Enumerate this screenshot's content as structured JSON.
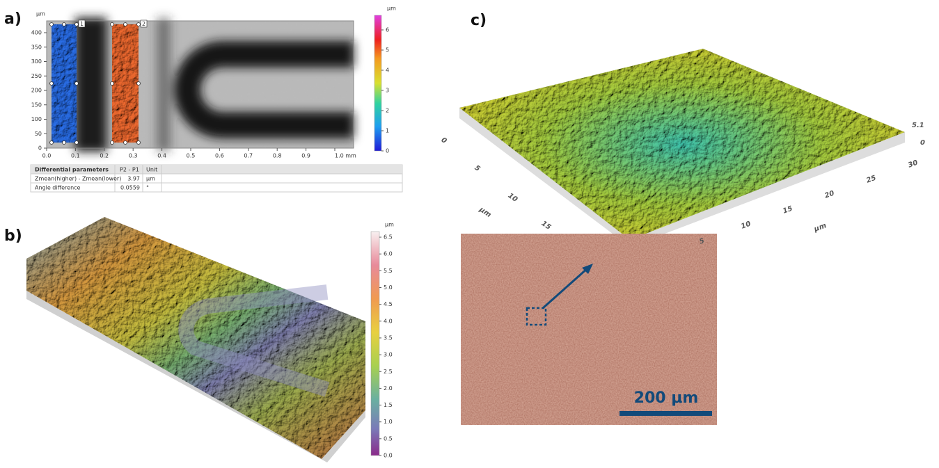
{
  "panel_labels": [
    "a)",
    "b)",
    "c)"
  ],
  "panel_a": {
    "y_unit": "μm",
    "yticks": [
      "0",
      "50",
      "100",
      "150",
      "200",
      "250",
      "300",
      "350",
      "400"
    ],
    "xticks": [
      "0.0",
      "0.1",
      "0.2",
      "0.3",
      "0.4",
      "0.5",
      "0.6",
      "0.7",
      "0.8",
      "0.9",
      "1.0 mm"
    ],
    "regions": [
      "1",
      "2"
    ],
    "colorbar": {
      "unit": "μm",
      "ticks": [
        "0",
        "1",
        "2",
        "3",
        "4",
        "5",
        "6"
      ]
    },
    "table": {
      "header": [
        "Differential parameters",
        "P2 - P1",
        "Unit"
      ],
      "rows": [
        [
          "Zmean(higher) - Zmean(lower)",
          "3.97",
          "μm"
        ],
        [
          "Angle difference",
          "0.0559",
          "°"
        ]
      ]
    }
  },
  "panel_b": {
    "colorbar": {
      "unit": "μm",
      "ticks": [
        "0.0",
        "0.5",
        "1.0",
        "1.5",
        "2.0",
        "2.5",
        "3.0",
        "3.5",
        "4.0",
        "4.5",
        "5.0",
        "5.5",
        "6.0",
        "6.5"
      ]
    }
  },
  "panel_c": {
    "z_ticks": [
      "5.1",
      "0"
    ],
    "left_ticks": [
      "0",
      "5",
      "10",
      "15"
    ],
    "left_unit": "μm",
    "right_ticks": [
      "5",
      "10",
      "15",
      "20",
      "25",
      "30"
    ],
    "right_unit": "μm",
    "scale_bar": "200 μm"
  }
}
